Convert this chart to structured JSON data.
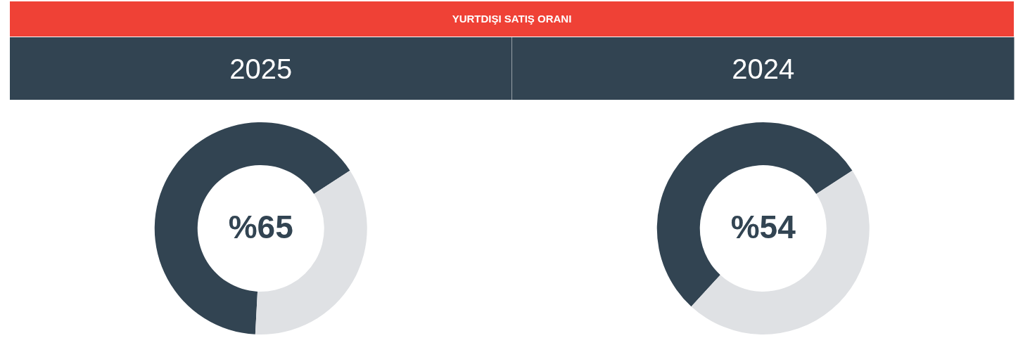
{
  "chart_data": [
    {
      "type": "other",
      "title": "YURTDIŞI SATIŞ ORANI"
    },
    {
      "type": "donut",
      "title": "2025",
      "categories": [
        null,
        null
      ],
      "values": [
        65,
        35
      ],
      "colors": [
        "#324452",
        "#dfe1e4"
      ],
      "value_labels": [
        "%65",
        null
      ],
      "legend": false
    },
    {
      "type": "donut",
      "title": "2024",
      "categories": [
        null,
        null
      ],
      "values": [
        54,
        46
      ],
      "colors": [
        "#324452",
        "#dfe1e4"
      ],
      "value_labels": [
        "%54",
        null
      ],
      "legend": false
    }
  ]
}
